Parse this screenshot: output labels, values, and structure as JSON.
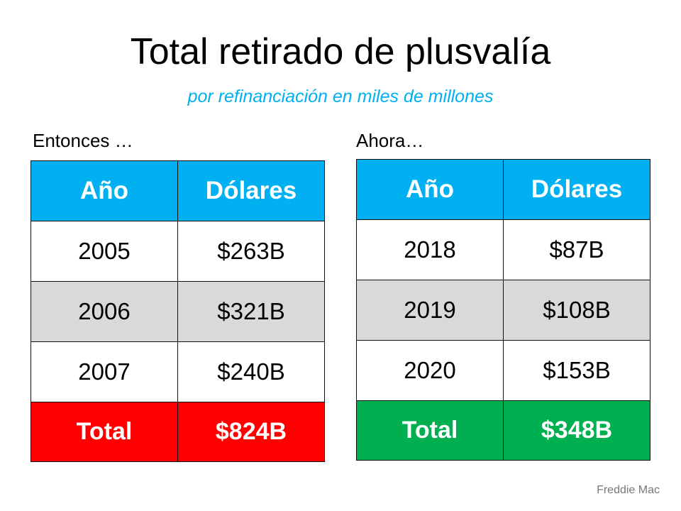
{
  "slide": {
    "title": "Total retirado de plusvalía",
    "subtitle": "por refinanciación en miles de millones",
    "source": "Freddie Mac"
  },
  "colors": {
    "header": "#00B0F0",
    "subtitle": "#00B0F0",
    "alt_row": "#D9D9D9",
    "total_then": "#FF0000",
    "total_now": "#00B050"
  },
  "tables": {
    "then": {
      "label": "Entonces …",
      "headers": [
        "Año",
        "Dólares"
      ],
      "rows": [
        {
          "year": "2005",
          "amount": "$263B"
        },
        {
          "year": "2006",
          "amount": "$321B"
        },
        {
          "year": "2007",
          "amount": "$240B"
        }
      ],
      "total": {
        "label": "Total",
        "amount": "$824B"
      }
    },
    "now": {
      "label": "Ahora…",
      "headers": [
        "Año",
        "Dólares"
      ],
      "rows": [
        {
          "year": "2018",
          "amount": "$87B"
        },
        {
          "year": "2019",
          "amount": "$108B"
        },
        {
          "year": "2020",
          "amount": "$153B"
        }
      ],
      "total": {
        "label": "Total",
        "amount": "$348B"
      }
    }
  }
}
